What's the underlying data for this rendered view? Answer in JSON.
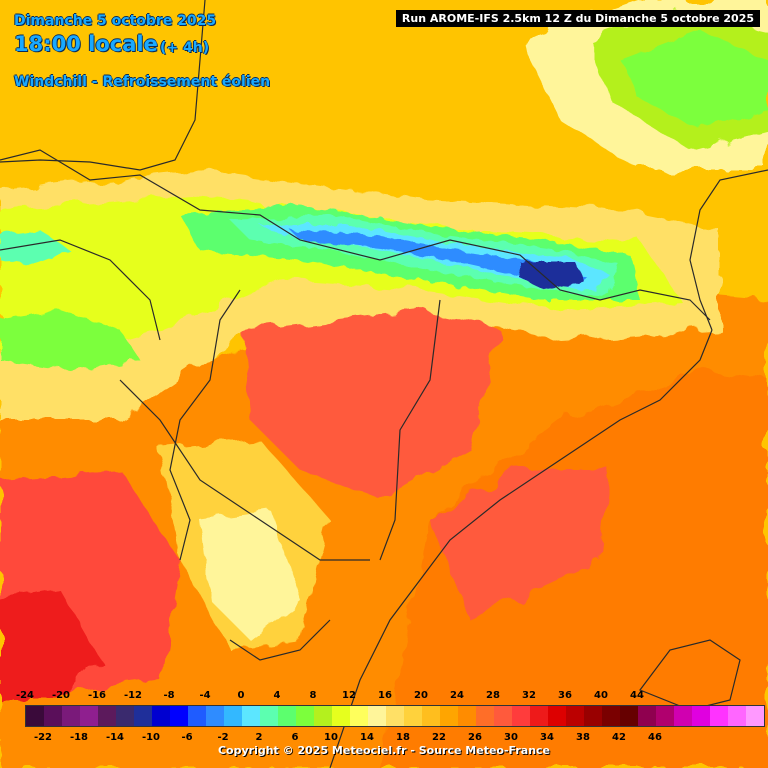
{
  "header": {
    "date": "Dimanche 5 octobre 2025",
    "time": "18:00 locale",
    "delta": "(+ 4h)",
    "parameter": "Windchill - Refroissement éolien",
    "run": "Run AROME-IFS 2.5km 12 Z du Dimanche 5 octobre 2025"
  },
  "legend": {
    "top_labels": [
      "-24",
      "-20",
      "-16",
      "-12",
      "-8",
      "-4",
      "0",
      "4",
      "8",
      "12",
      "16",
      "20",
      "24",
      "28",
      "32",
      "36",
      "40",
      "44"
    ],
    "bottom_labels": [
      "-22",
      "-18",
      "-14",
      "-10",
      "-6",
      "-2",
      "2",
      "6",
      "10",
      "14",
      "18",
      "22",
      "26",
      "30",
      "34",
      "38",
      "42",
      "46"
    ],
    "colors": [
      "#3a0a3a",
      "#5a0f5a",
      "#7a1a7a",
      "#8f1f8f",
      "#5c1a5c",
      "#3a2a6e",
      "#1f2f9a",
      "#0000d0",
      "#0000ff",
      "#1f5cff",
      "#2f8cff",
      "#33b8ff",
      "#5ce6ff",
      "#5cffb0",
      "#5cff6e",
      "#7cff3c",
      "#b4f01e",
      "#e6ff1e",
      "#ffff5c",
      "#fff59a",
      "#ffe066",
      "#ffd23c",
      "#ffbe1e",
      "#ffa500",
      "#ff8c00",
      "#ff6e28",
      "#ff5a3c",
      "#ff3c3c",
      "#ee1a1a",
      "#dd0000",
      "#bb0000",
      "#990000",
      "#7a0000",
      "#660000",
      "#8f004f",
      "#b0006e",
      "#d000b0",
      "#e000e0",
      "#ff33ff",
      "#ff66ff",
      "#ff99ff"
    ]
  },
  "footer": {
    "copyright": "Copyright © 2025 Meteociel.fr - Source Meteo-France"
  },
  "map_colors": {
    "sea": "#ff7b00",
    "lowland": "#ffa500",
    "pyrenees_high": "#2f8cff",
    "pyrenees_mid": "#5cffb0",
    "hills": "#e6ff1e",
    "warm": "#ff5a3c",
    "hot": "#ee1a1a",
    "north": "#ffc400"
  }
}
